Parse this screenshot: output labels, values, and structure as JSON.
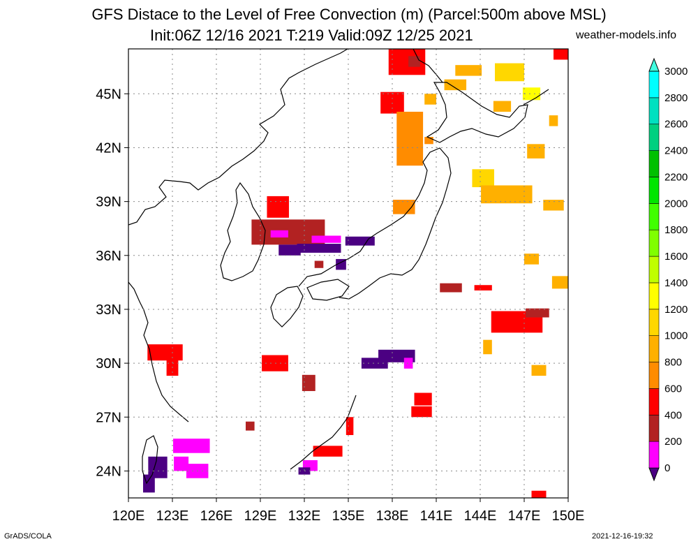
{
  "header": {
    "title": "GFS Distace to the Level of Free Convection (m) (Parcel:500m above MSL)",
    "subtitle": "Init:06Z 12/16 2021 T:219 Valid:09Z 12/25 2021",
    "site": "weather-models.info"
  },
  "axes": {
    "lon_labels": [
      "120E",
      "123E",
      "126E",
      "129E",
      "132E",
      "135E",
      "138E",
      "141E",
      "144E",
      "147E",
      "150E"
    ],
    "lat_labels": [
      "24N",
      "27N",
      "30N",
      "33N",
      "36N",
      "39N",
      "42N",
      "45N"
    ],
    "lon_range": [
      120,
      150
    ],
    "lat_range": [
      22.5,
      47.5
    ]
  },
  "colorbar": {
    "labels": [
      "0",
      "200",
      "400",
      "600",
      "800",
      "1000",
      "1200",
      "1400",
      "1600",
      "1800",
      "2000",
      "2200",
      "2400",
      "2600",
      "2800",
      "3000"
    ],
    "colors": [
      "#4b0082",
      "#ff00ff",
      "#b22222",
      "#ff0000",
      "#ff8c00",
      "#ffb000",
      "#ffd700",
      "#ffff00",
      "#c0ff00",
      "#80ff00",
      "#40ff00",
      "#00e600",
      "#00c000",
      "#00d080",
      "#00e0c0",
      "#00ffff",
      "#40ffe0"
    ]
  },
  "footer": {
    "left": "GrADS/COLA",
    "right": "2021-12-16-19:32"
  },
  "field_patches": [
    {
      "lon": 138.0,
      "lat": 44.5,
      "w": 1.6,
      "h": 1.2,
      "c": "#ff0000"
    },
    {
      "lon": 139.2,
      "lat": 42.5,
      "w": 1.8,
      "h": 3.0,
      "c": "#ff8c00"
    },
    {
      "lon": 139.0,
      "lat": 46.8,
      "w": 2.5,
      "h": 1.5,
      "c": "#ff0000"
    },
    {
      "lon": 139.5,
      "lat": 46.8,
      "w": 0.8,
      "h": 0.6,
      "c": "#b22222"
    },
    {
      "lon": 140.6,
      "lat": 44.7,
      "w": 0.8,
      "h": 0.6,
      "c": "#ffb000"
    },
    {
      "lon": 142.3,
      "lat": 45.5,
      "w": 1.5,
      "h": 0.6,
      "c": "#ffb000"
    },
    {
      "lon": 143.2,
      "lat": 46.3,
      "w": 1.8,
      "h": 0.6,
      "c": "#ffb000"
    },
    {
      "lon": 146.0,
      "lat": 46.2,
      "w": 2.0,
      "h": 1.0,
      "c": "#ffd700"
    },
    {
      "lon": 147.5,
      "lat": 45.0,
      "w": 1.2,
      "h": 0.7,
      "c": "#ffff00"
    },
    {
      "lon": 149.5,
      "lat": 47.2,
      "w": 1.0,
      "h": 0.6,
      "c": "#ff0000"
    },
    {
      "lon": 145.5,
      "lat": 44.3,
      "w": 1.2,
      "h": 0.6,
      "c": "#ffb000"
    },
    {
      "lon": 149.0,
      "lat": 43.5,
      "w": 0.6,
      "h": 0.6,
      "c": "#ffb000"
    },
    {
      "lon": 147.8,
      "lat": 41.8,
      "w": 1.2,
      "h": 0.8,
      "c": "#ffb000"
    },
    {
      "lon": 144.2,
      "lat": 40.3,
      "w": 1.5,
      "h": 1.0,
      "c": "#ffd700"
    },
    {
      "lon": 145.8,
      "lat": 39.4,
      "w": 3.5,
      "h": 1.0,
      "c": "#ffb000"
    },
    {
      "lon": 149.0,
      "lat": 38.8,
      "w": 1.4,
      "h": 0.6,
      "c": "#ffb000"
    },
    {
      "lon": 140.5,
      "lat": 42.4,
      "w": 0.6,
      "h": 0.4,
      "c": "#ff8c00"
    },
    {
      "lon": 138.8,
      "lat": 38.7,
      "w": 1.5,
      "h": 0.8,
      "c": "#ff8c00"
    },
    {
      "lon": 130.2,
      "lat": 38.7,
      "w": 1.5,
      "h": 1.2,
      "c": "#ff0000"
    },
    {
      "lon": 130.9,
      "lat": 37.3,
      "w": 5.0,
      "h": 1.4,
      "c": "#b22222"
    },
    {
      "lon": 131.0,
      "lat": 36.3,
      "w": 1.5,
      "h": 0.6,
      "c": "#4b0082"
    },
    {
      "lon": 133.0,
      "lat": 36.4,
      "w": 3.0,
      "h": 0.5,
      "c": "#4b0082"
    },
    {
      "lon": 133.5,
      "lat": 36.9,
      "w": 2.0,
      "h": 0.4,
      "c": "#ff00ff"
    },
    {
      "lon": 130.3,
      "lat": 37.2,
      "w": 1.2,
      "h": 0.4,
      "c": "#ff00ff"
    },
    {
      "lon": 135.8,
      "lat": 36.8,
      "w": 2.0,
      "h": 0.5,
      "c": "#4b0082"
    },
    {
      "lon": 133.0,
      "lat": 35.5,
      "w": 0.6,
      "h": 0.4,
      "c": "#b22222"
    },
    {
      "lon": 134.5,
      "lat": 35.5,
      "w": 0.7,
      "h": 0.6,
      "c": "#4b0082"
    },
    {
      "lon": 147.5,
      "lat": 35.8,
      "w": 1.0,
      "h": 0.6,
      "c": "#ffb000"
    },
    {
      "lon": 149.5,
      "lat": 34.5,
      "w": 1.2,
      "h": 0.7,
      "c": "#ffb000"
    },
    {
      "lon": 142.0,
      "lat": 34.2,
      "w": 1.5,
      "h": 0.5,
      "c": "#b22222"
    },
    {
      "lon": 144.2,
      "lat": 34.2,
      "w": 1.2,
      "h": 0.3,
      "c": "#ff0000"
    },
    {
      "lon": 146.5,
      "lat": 32.3,
      "w": 3.5,
      "h": 1.2,
      "c": "#ff0000"
    },
    {
      "lon": 147.9,
      "lat": 32.8,
      "w": 1.6,
      "h": 0.5,
      "c": "#b22222"
    },
    {
      "lon": 122.5,
      "lat": 30.6,
      "w": 2.4,
      "h": 0.9,
      "c": "#ff0000"
    },
    {
      "lon": 123.0,
      "lat": 29.8,
      "w": 0.8,
      "h": 1.0,
      "c": "#ff0000"
    },
    {
      "lon": 130.0,
      "lat": 30.0,
      "w": 1.8,
      "h": 0.9,
      "c": "#ff0000"
    },
    {
      "lon": 132.3,
      "lat": 28.9,
      "w": 0.9,
      "h": 0.9,
      "c": "#b22222"
    },
    {
      "lon": 138.3,
      "lat": 30.4,
      "w": 2.5,
      "h": 0.7,
      "c": "#4b0082"
    },
    {
      "lon": 136.8,
      "lat": 30.0,
      "w": 1.8,
      "h": 0.6,
      "c": "#4b0082"
    },
    {
      "lon": 139.1,
      "lat": 30.0,
      "w": 0.6,
      "h": 0.6,
      "c": "#ff00ff"
    },
    {
      "lon": 140.1,
      "lat": 28.0,
      "w": 1.2,
      "h": 0.7,
      "c": "#ff0000"
    },
    {
      "lon": 140.0,
      "lat": 27.3,
      "w": 1.4,
      "h": 0.6,
      "c": "#ff0000"
    },
    {
      "lon": 144.5,
      "lat": 30.9,
      "w": 0.6,
      "h": 0.8,
      "c": "#ffb000"
    },
    {
      "lon": 148.0,
      "lat": 29.6,
      "w": 1.0,
      "h": 0.6,
      "c": "#ffb000"
    },
    {
      "lon": 133.6,
      "lat": 25.1,
      "w": 2.0,
      "h": 0.6,
      "c": "#ff0000"
    },
    {
      "lon": 132.4,
      "lat": 24.3,
      "w": 1.0,
      "h": 0.6,
      "c": "#ff00ff"
    },
    {
      "lon": 132.0,
      "lat": 24.0,
      "w": 0.8,
      "h": 0.4,
      "c": "#4b0082"
    },
    {
      "lon": 135.1,
      "lat": 26.5,
      "w": 0.5,
      "h": 1.0,
      "c": "#ff0000"
    },
    {
      "lon": 124.3,
      "lat": 25.4,
      "w": 2.5,
      "h": 0.8,
      "c": "#ff00ff"
    },
    {
      "lon": 122.0,
      "lat": 24.2,
      "w": 1.3,
      "h": 1.2,
      "c": "#4b0082"
    },
    {
      "lon": 123.6,
      "lat": 24.4,
      "w": 1.0,
      "h": 0.8,
      "c": "#ff00ff"
    },
    {
      "lon": 124.7,
      "lat": 24.0,
      "w": 1.5,
      "h": 0.8,
      "c": "#ff00ff"
    },
    {
      "lon": 121.4,
      "lat": 23.3,
      "w": 0.8,
      "h": 1.0,
      "c": "#4b0082"
    },
    {
      "lon": 128.3,
      "lat": 26.5,
      "w": 0.6,
      "h": 0.5,
      "c": "#b22222"
    },
    {
      "lon": 148.0,
      "lat": 22.7,
      "w": 1.0,
      "h": 0.4,
      "c": "#ff0000"
    }
  ]
}
